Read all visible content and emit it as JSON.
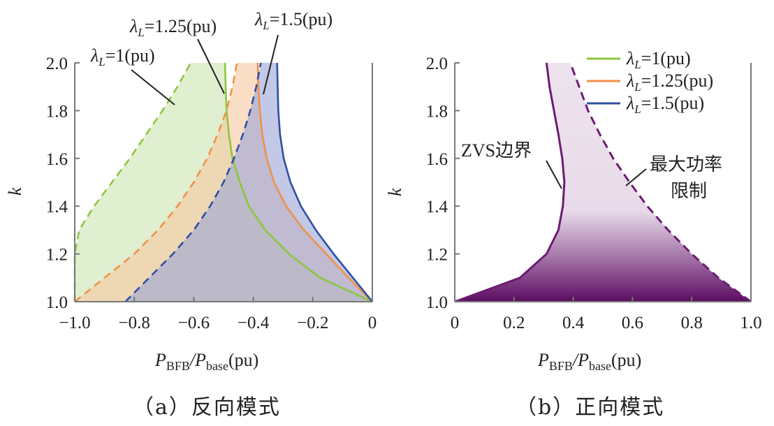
{
  "chart_data": [
    {
      "type": "area",
      "panel": "a",
      "caption": "（a）反向模式",
      "xlabel_main": "P",
      "xlabel_sub1": "BFB",
      "xlabel_mid": "/P",
      "xlabel_sub2": "base",
      "xlabel_tail": "(pu)",
      "ylabel": "k",
      "xlim": [
        -1.0,
        0
      ],
      "ylim": [
        1.0,
        2.0
      ],
      "xticks": [
        "−1.0",
        "−0.8",
        "−0.6",
        "−0.4",
        "−0.2",
        "0"
      ],
      "xtick_values": [
        -1.0,
        -0.8,
        -0.6,
        -0.4,
        -0.2,
        0
      ],
      "yticks": [
        "1.0",
        "1.2",
        "1.4",
        "1.6",
        "1.8",
        "2.0"
      ],
      "ytick_values": [
        1.0,
        1.2,
        1.4,
        1.6,
        1.8,
        2.0
      ],
      "k": [
        1.0,
        1.1,
        1.2,
        1.3,
        1.4,
        1.5,
        1.6,
        1.7,
        1.8,
        1.9,
        2.0
      ],
      "series": [
        {
          "name": "λL=1(pu)",
          "label_lambda": "λ",
          "label_sub": "L",
          "label_value": "=1(pu)",
          "color": "#8dc63f",
          "fill": "#cfe5b4",
          "zvs": [
            0,
            -0.175,
            -0.28,
            -0.36,
            -0.415,
            -0.445,
            -0.47,
            -0.482,
            -0.49,
            -0.493,
            -0.495
          ],
          "max_power": [
            -1.0,
            -1.0,
            -1.0,
            -0.985,
            -0.935,
            -0.875,
            -0.815,
            -0.76,
            -0.705,
            -0.655,
            -0.61
          ]
        },
        {
          "name": "λL=1.25(pu)",
          "label_lambda": "λ",
          "label_sub": "L",
          "label_value": "=1.25(pu)",
          "color": "#f0914a",
          "fill": "#f6caa2",
          "zvs": [
            0,
            -0.08,
            -0.155,
            -0.23,
            -0.29,
            -0.33,
            -0.355,
            -0.37,
            -0.378,
            -0.383,
            -0.385
          ],
          "max_power": [
            -1.0,
            -0.9,
            -0.8,
            -0.72,
            -0.655,
            -0.6,
            -0.555,
            -0.52,
            -0.49,
            -0.47,
            -0.455
          ]
        },
        {
          "name": "λL=1.5(pu)",
          "label_lambda": "λ",
          "label_sub": "L",
          "label_value": "=1.5(pu)",
          "color": "#2e4fa3",
          "fill": "#9da7d6",
          "zvs": [
            0,
            -0.065,
            -0.13,
            -0.19,
            -0.24,
            -0.275,
            -0.298,
            -0.31,
            -0.316,
            -0.318,
            -0.32
          ],
          "max_power": [
            -0.83,
            -0.75,
            -0.67,
            -0.6,
            -0.545,
            -0.5,
            -0.465,
            -0.435,
            -0.41,
            -0.39,
            -0.375
          ]
        }
      ]
    },
    {
      "type": "area",
      "panel": "b",
      "caption": "（b）正向模式",
      "xlabel_main": "P",
      "xlabel_sub1": "BFB",
      "xlabel_mid": "/P",
      "xlabel_sub2": "base",
      "xlabel_tail": "(pu)",
      "ylabel": "k",
      "xlim": [
        0,
        1.0
      ],
      "ylim": [
        1.0,
        2.0
      ],
      "xticks": [
        "0",
        "0.2",
        "0.4",
        "0.6",
        "0.8",
        "1.0"
      ],
      "xtick_values": [
        0,
        0.2,
        0.4,
        0.6,
        0.8,
        1.0
      ],
      "yticks": [
        "1.0",
        "1.2",
        "1.4",
        "1.6",
        "1.8",
        "2.0"
      ],
      "ytick_values": [
        1.0,
        1.2,
        1.4,
        1.6,
        1.8,
        2.0
      ],
      "legend": [
        {
          "lambda": "λ",
          "sub": "L",
          "value": "=1(pu)",
          "color": "#8dc63f"
        },
        {
          "lambda": "λ",
          "sub": "L",
          "value": "=1.25(pu)",
          "color": "#f0914a"
        },
        {
          "lambda": "λ",
          "sub": "L",
          "value": "=1.5(pu)",
          "color": "#2e4fa3"
        }
      ],
      "k": [
        1.0,
        1.1,
        1.2,
        1.3,
        1.4,
        1.5,
        1.6,
        1.7,
        1.8,
        1.9,
        2.0
      ],
      "zvs_boundary": [
        0,
        0.22,
        0.31,
        0.35,
        0.365,
        0.37,
        0.363,
        0.35,
        0.335,
        0.32,
        0.31
      ],
      "max_power_limit": [
        1.0,
        0.89,
        0.8,
        0.72,
        0.65,
        0.59,
        0.535,
        0.49,
        0.45,
        0.42,
        0.39
      ],
      "annotation_zvs": "ZVS边界",
      "annotation_max_line1": "最大功率",
      "annotation_max_line2": "限制",
      "color": "#6d1b73"
    }
  ]
}
